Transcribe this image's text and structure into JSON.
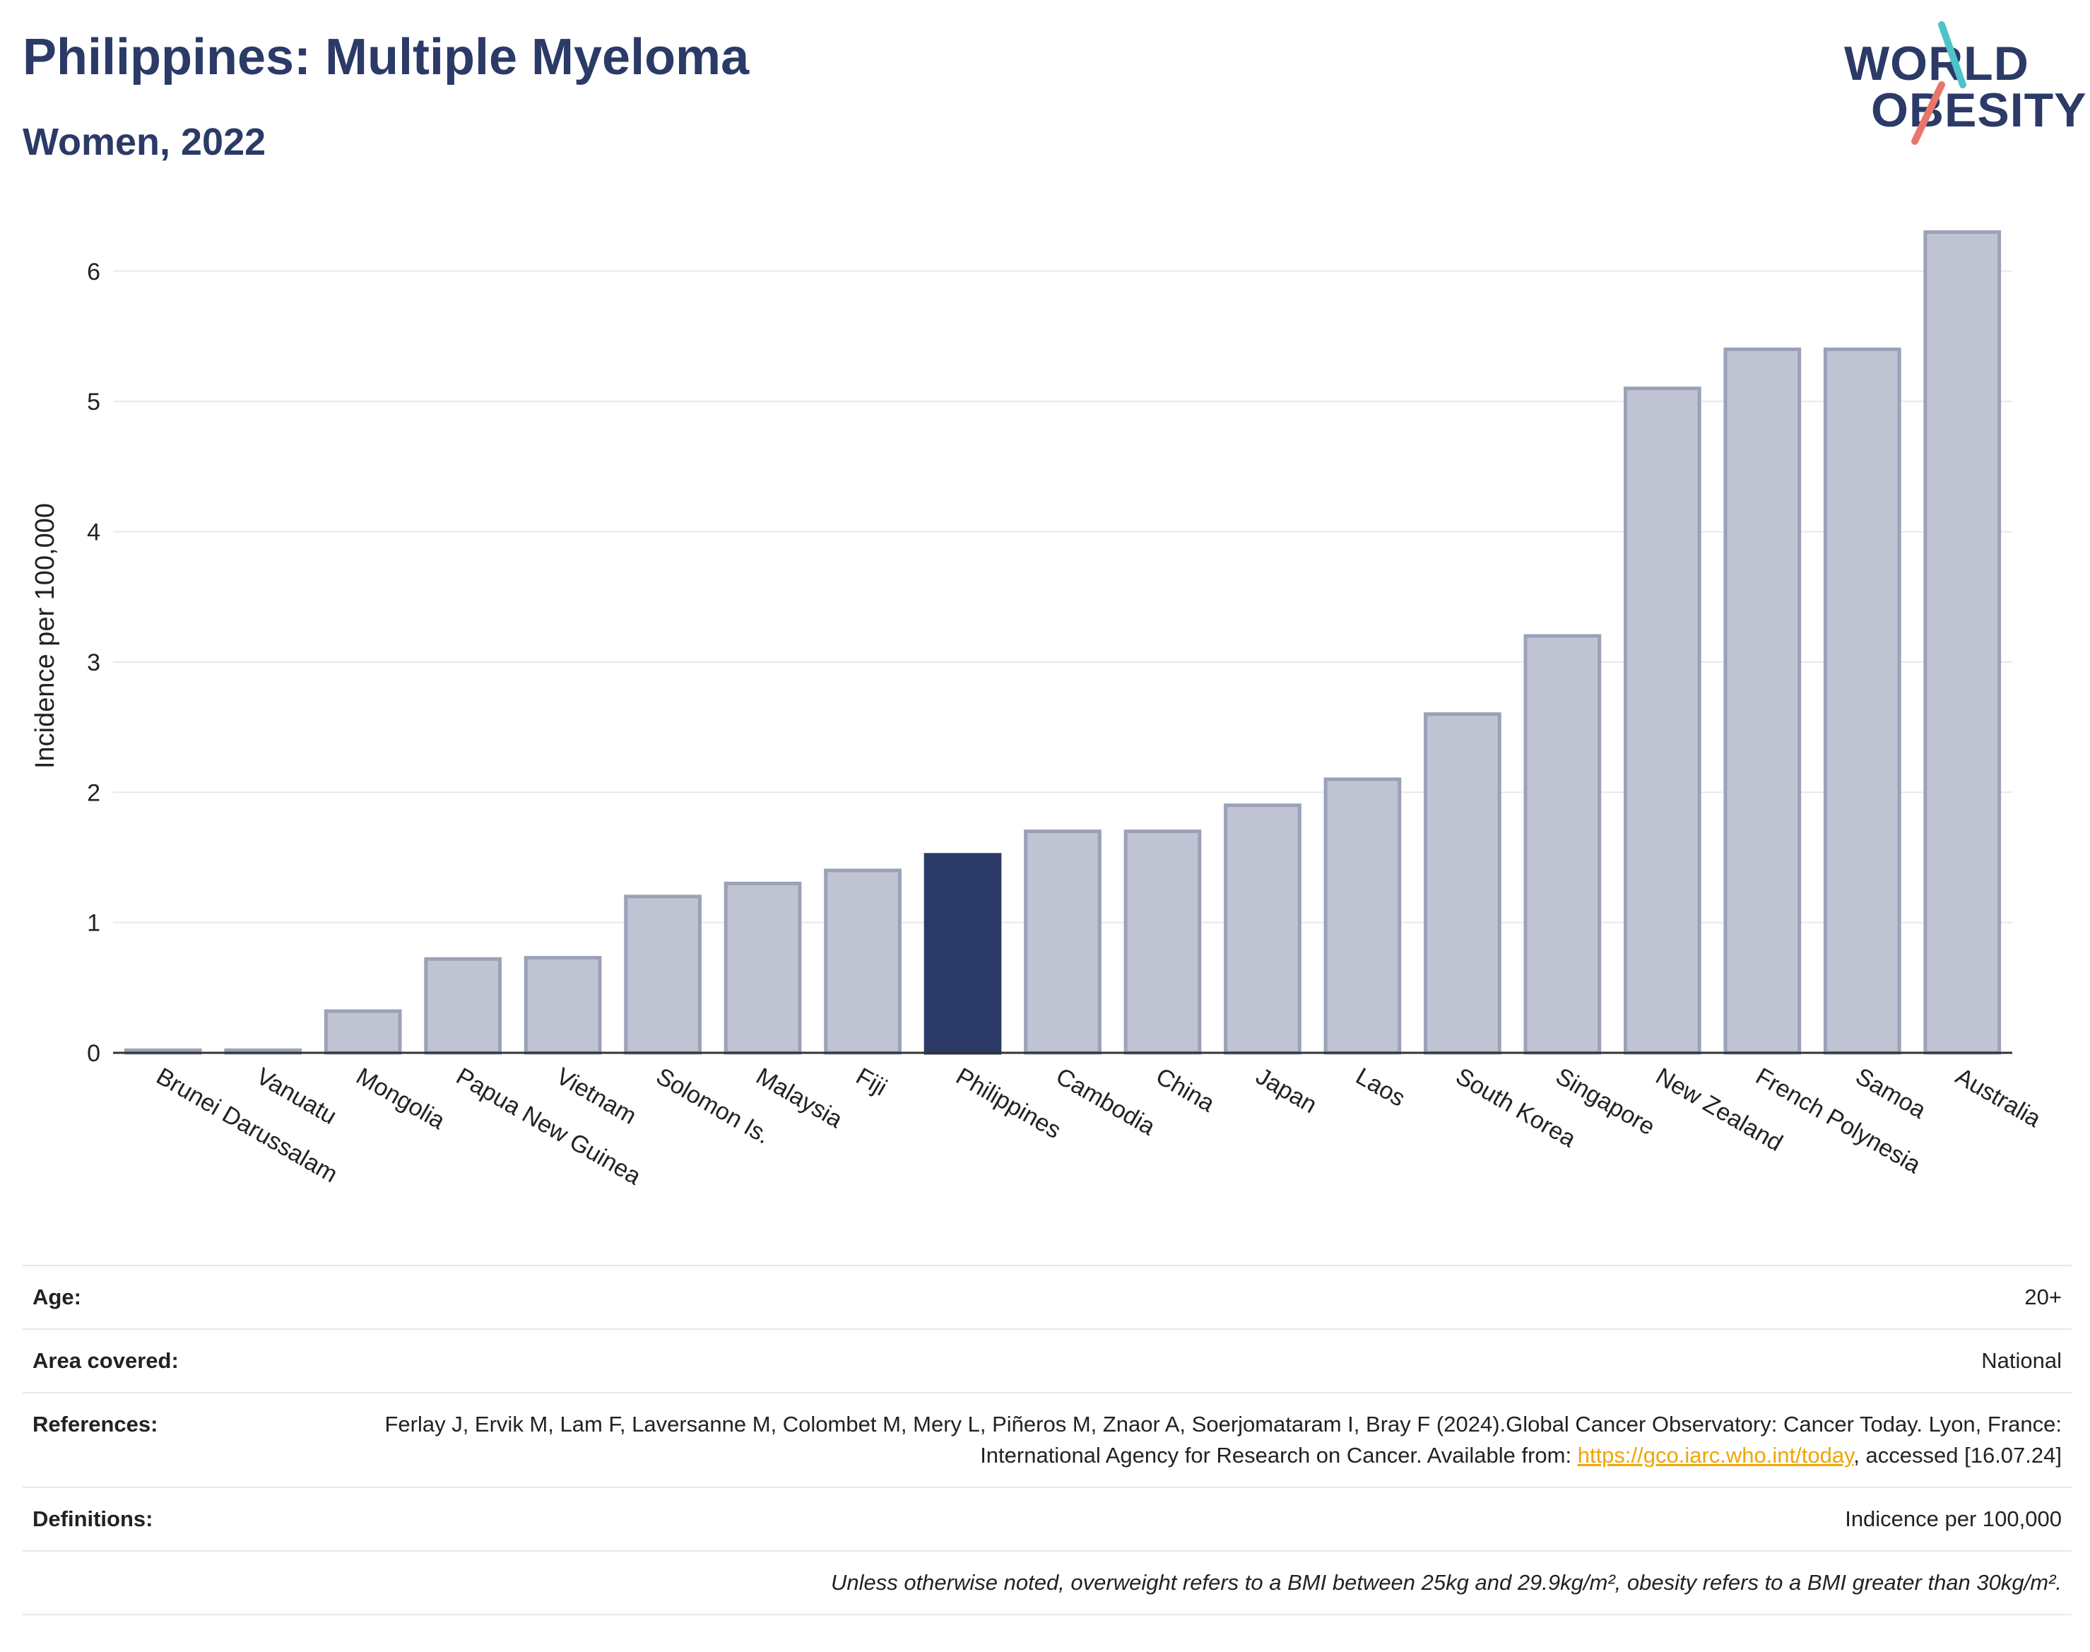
{
  "title": "Philippines: Multiple Myeloma",
  "subtitle": "Women, 2022",
  "logo": {
    "line1": "WORLD",
    "line2": "OBESITY",
    "accent": "#e8766b",
    "accent2": "#4fc3c9"
  },
  "colors": {
    "highlight": "#2b3a67",
    "bar_fill": "#c0c4d2",
    "bar_stroke": "#9aa1b8",
    "grid": "#e6e8ef"
  },
  "chart_data": {
    "type": "bar",
    "ylabel": "Incidence per 100,000",
    "ylim": [
      0,
      6.4
    ],
    "yticks": [
      0,
      1,
      2,
      3,
      4,
      5,
      6
    ],
    "grid": true,
    "highlight": "Philippines",
    "categories": [
      "Brunei Darussalam",
      "Vanuatu",
      "Mongolia",
      "Papua New Guinea",
      "Vietnam",
      "Solomon Is.",
      "Malaysia",
      "Fiji",
      "Philippines",
      "Cambodia",
      "China",
      "Japan",
      "Laos",
      "South Korea",
      "Singapore",
      "New Zealand",
      "French Polynesia",
      "Samoa",
      "Australia"
    ],
    "values": [
      0.02,
      0.02,
      0.32,
      0.72,
      0.73,
      1.2,
      1.3,
      1.4,
      1.52,
      1.7,
      1.7,
      1.9,
      2.1,
      2.6,
      3.2,
      5.1,
      5.4,
      5.4,
      6.3
    ]
  },
  "info": {
    "age_label": "Age:",
    "age_value": "20+",
    "area_label": "Area covered:",
    "area_value": "National",
    "refs_label": "References:",
    "refs_text_1": "Ferlay J, Ervik M, Lam F, Laversanne M, Colombet M, Mery L, Piñeros M, Znaor A, Soerjomataram I, Bray F (2024).Global Cancer Observatory: Cancer Today. Lyon, France: International Agency for Research on Cancer. Available from: ",
    "refs_link": "https://gco.iarc.who.int/today",
    "refs_text_2": ", accessed [16.07.24]",
    "defs_label": "Definitions:",
    "defs_value": "Indicence per 100,000",
    "note": "Unless otherwise noted, overweight refers to a BMI between 25kg and 29.9kg/m², obesity refers to a BMI greater than 30kg/m²."
  }
}
